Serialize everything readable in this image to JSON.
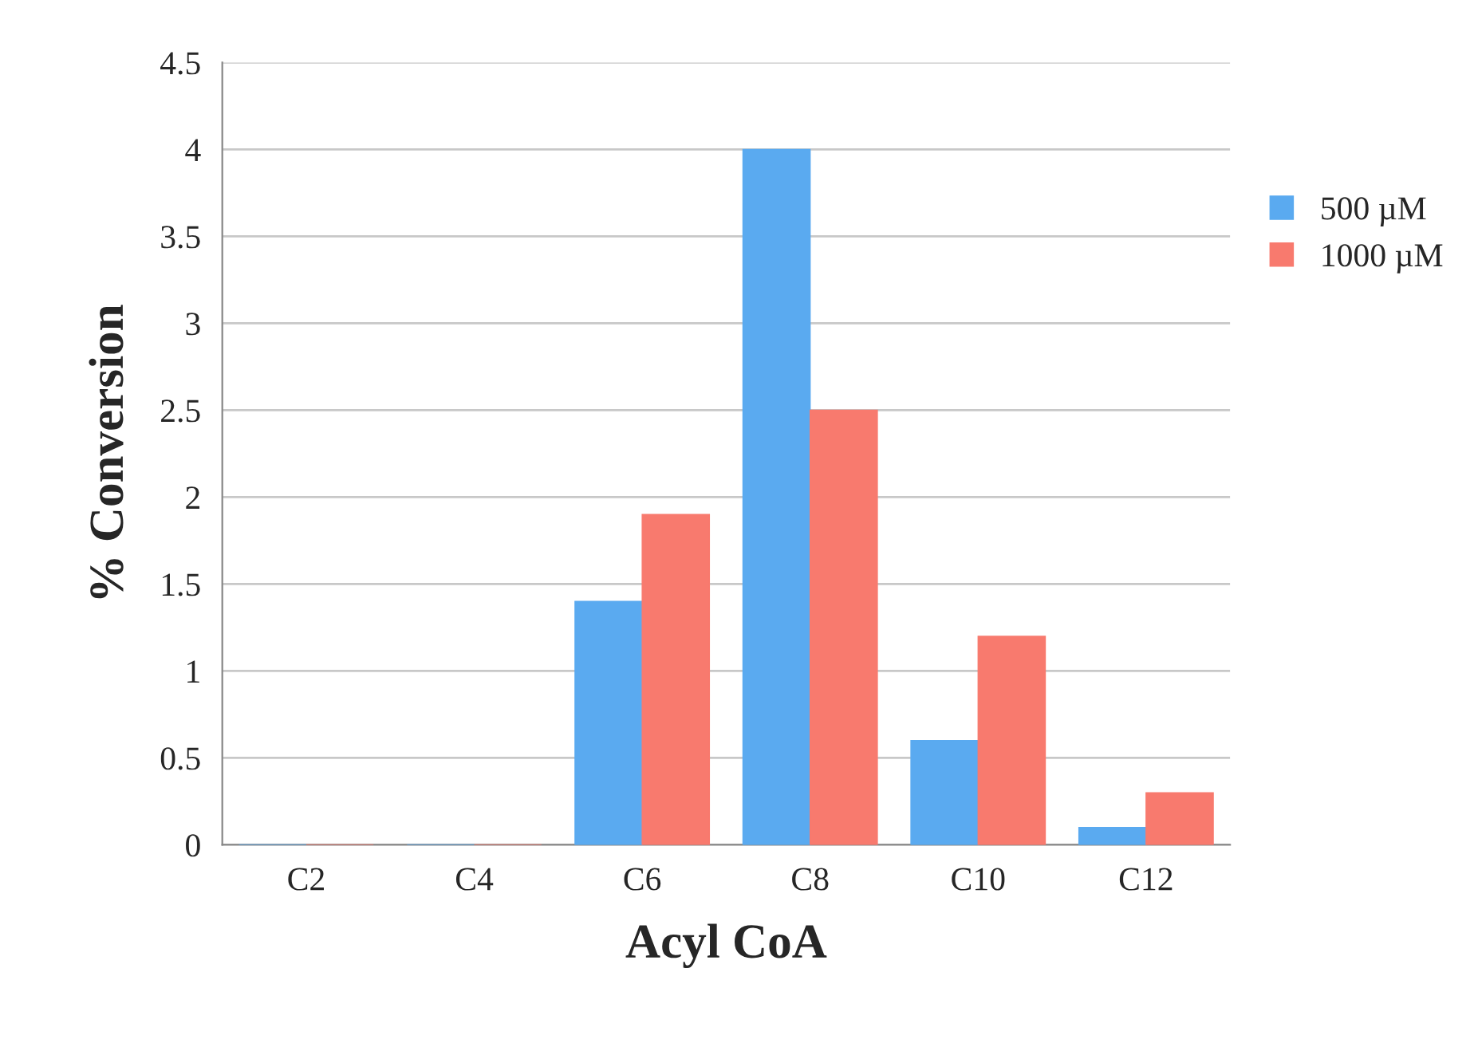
{
  "chart_data": {
    "type": "bar",
    "xlabel": "Acyl CoA",
    "ylabel": "% Conversion",
    "categories": [
      "C2",
      "C4",
      "C6",
      "C8",
      "C10",
      "C12"
    ],
    "series": [
      {
        "name": "500 µM",
        "color": "#5aaaf0",
        "values": [
          0,
          0,
          1.4,
          4.0,
          0.6,
          0.1
        ]
      },
      {
        "name": "1000 µM",
        "color": "#f87a6e",
        "values": [
          0,
          0,
          1.9,
          2.5,
          1.2,
          0.3
        ]
      }
    ],
    "ylim": [
      0,
      4.5
    ],
    "yticks": [
      0,
      0.5,
      1,
      1.5,
      2,
      2.5,
      3,
      3.5,
      4,
      4.5
    ],
    "grid": "y",
    "legend": "right"
  }
}
